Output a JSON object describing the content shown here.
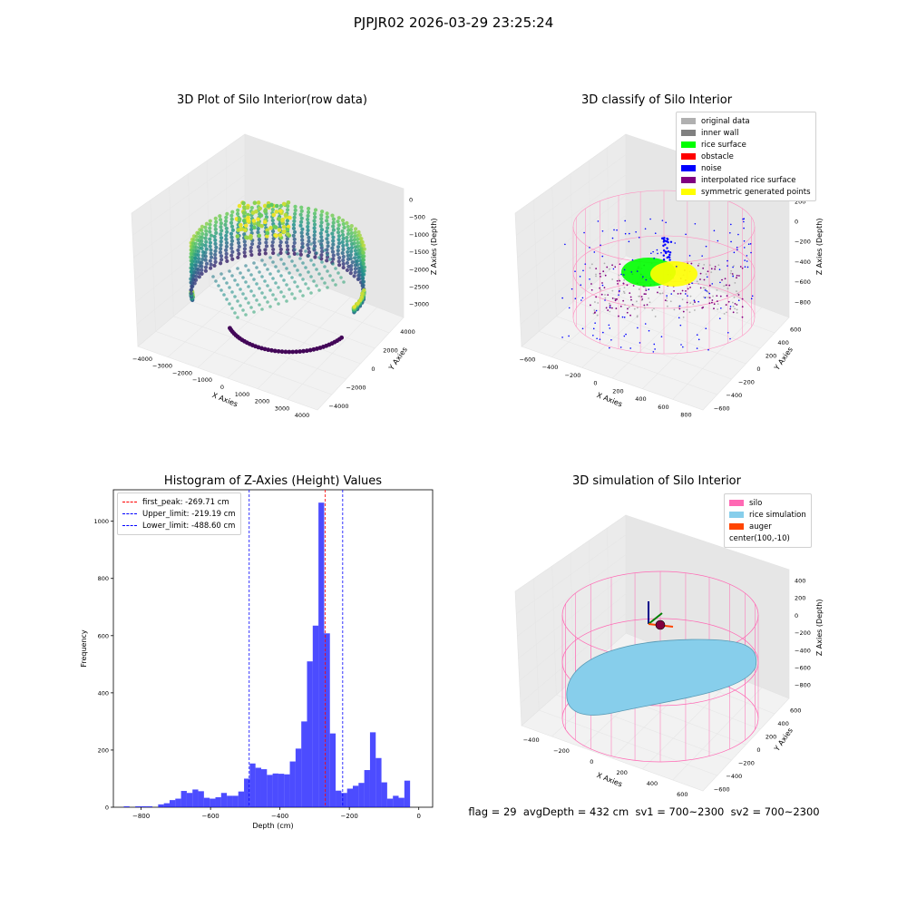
{
  "suptitle": "PJPJR02 2026-03-29 23:25:24",
  "footer": "flag = 29  avgDepth = 432 cm  sv1 = 700~2300  sv2 = 700~2300",
  "panels": {
    "raw": {
      "title": "3D Plot of Silo Interior(row data)",
      "xlabel": "X Axies",
      "ylabel": "Y Axies",
      "zlabel": "Z Axies (Depth)",
      "xticks": [
        "−4000",
        "−3000",
        "−2000",
        "−1000",
        "0",
        "1000",
        "2000",
        "3000",
        "4000"
      ],
      "yticks": [
        "−4000",
        "−2000",
        "0",
        "2000",
        "4000"
      ],
      "zticks": [
        "0",
        "−500",
        "−1000",
        "−1500",
        "−2000",
        "−2500",
        "−3000"
      ],
      "colormap": "viridis"
    },
    "classify": {
      "title": "3D classify of Silo Interior",
      "xlabel": "X Axies",
      "ylabel": "Y Axies",
      "zlabel": "Z Axies (Depth)",
      "xticks": [
        "−600",
        "−400",
        "−200",
        "0",
        "200",
        "400",
        "600",
        "800"
      ],
      "yticks": [
        "−600",
        "−400",
        "−200",
        "0",
        "200",
        "400",
        "600"
      ],
      "zticks": [
        "200",
        "0",
        "−200",
        "−400",
        "−600",
        "−800"
      ],
      "ztick_top_partial": "0",
      "legend": [
        {
          "label": "original data",
          "color": "#b0b0b0"
        },
        {
          "label": "inner wall",
          "color": "#808080"
        },
        {
          "label": "rice surface",
          "color": "#00ff00"
        },
        {
          "label": "obstacle",
          "color": "#ff0000"
        },
        {
          "label": "noise",
          "color": "#0000ff"
        },
        {
          "label": "interpolated rice surface",
          "color": "#800080"
        },
        {
          "label": "symmetric generated points",
          "color": "#ffff00"
        }
      ]
    },
    "simulation": {
      "title": "3D simulation of Silo Interior",
      "xlabel": "X Axies",
      "ylabel": "Y Axies",
      "zlabel": "Z Axies (Depth)",
      "xticks": [
        "−400",
        "−200",
        "0",
        "200",
        "400",
        "600"
      ],
      "yticks": [
        "−600",
        "−400",
        "−200",
        "0",
        "200",
        "400",
        "600"
      ],
      "zticks": [
        "400",
        "200",
        "0",
        "−200",
        "−400",
        "−600",
        "−800"
      ],
      "legend": [
        {
          "label": "silo",
          "color": "#ff69b4"
        },
        {
          "label": "rice simulation",
          "color": "#87ceeb"
        },
        {
          "label": "auger",
          "color": "#ff4500"
        },
        {
          "label": "center(100,-10)",
          "color": "none"
        }
      ]
    }
  },
  "chart_data": [
    {
      "type": "scatter",
      "title": "3D Plot of Silo Interior(row data)",
      "xlabel": "X Axies",
      "ylabel": "Y Axies",
      "zlabel": "Z Axies (Depth)",
      "xlim": [
        -4000,
        4000
      ],
      "ylim": [
        -4000,
        4000
      ],
      "zlim": [
        -3500,
        0
      ],
      "colormap": "viridis"
    },
    {
      "type": "scatter",
      "title": "3D classify of Silo Interior",
      "xlabel": "X Axies",
      "ylabel": "Y Axies",
      "zlabel": "Z Axies (Depth)",
      "xlim": [
        -600,
        800
      ],
      "ylim": [
        -600,
        600
      ],
      "zlim": [
        -900,
        200
      ],
      "legend_placement": "top-right",
      "series": [
        {
          "name": "original data"
        },
        {
          "name": "inner wall"
        },
        {
          "name": "rice surface"
        },
        {
          "name": "obstacle"
        },
        {
          "name": "noise"
        },
        {
          "name": "interpolated rice surface"
        },
        {
          "name": "symmetric generated points"
        }
      ]
    },
    {
      "type": "bar",
      "title": "Histogram of Z-Axies (Height) Values",
      "xlabel": "Depth (cm)",
      "ylabel": "Frequency",
      "xlim": [
        -880,
        40
      ],
      "ylim": [
        0,
        1110
      ],
      "xticks": [
        -800,
        -600,
        -400,
        -200,
        0
      ],
      "yticks": [
        0,
        200,
        400,
        600,
        800,
        1000
      ],
      "bin_width": 16.5,
      "bin_start": -850,
      "values": [
        3,
        0,
        3,
        3,
        3,
        0,
        10,
        14,
        25,
        30,
        57,
        50,
        62,
        56,
        33,
        30,
        35,
        50,
        40,
        40,
        55,
        100,
        153,
        138,
        133,
        113,
        118,
        117,
        115,
        160,
        205,
        300,
        510,
        635,
        1065,
        608,
        258,
        58,
        50,
        65,
        75,
        85,
        130,
        262,
        172,
        87,
        30,
        40,
        33,
        93
      ],
      "color": "#0000ff",
      "lines": [
        {
          "label": "first_peak: -269.71 cm",
          "x": -269.71,
          "color": "#ff0000"
        },
        {
          "label": "Upper_limit: -219.19 cm",
          "x": -219.19,
          "color": "#0000ff"
        },
        {
          "label": "Lower_limit: -488.60 cm",
          "x": -488.6,
          "color": "#0000ff"
        }
      ],
      "legend_placement": "top-left"
    },
    {
      "type": "scatter",
      "title": "3D simulation of Silo Interior",
      "xlabel": "X Axies",
      "ylabel": "Y Axies",
      "zlabel": "Z Axies (Depth)",
      "xlim": [
        -500,
        700
      ],
      "ylim": [
        -600,
        600
      ],
      "zlim": [
        -900,
        450
      ],
      "legend_placement": "top-right",
      "series": [
        {
          "name": "silo"
        },
        {
          "name": "rice simulation"
        },
        {
          "name": "auger"
        }
      ]
    }
  ]
}
